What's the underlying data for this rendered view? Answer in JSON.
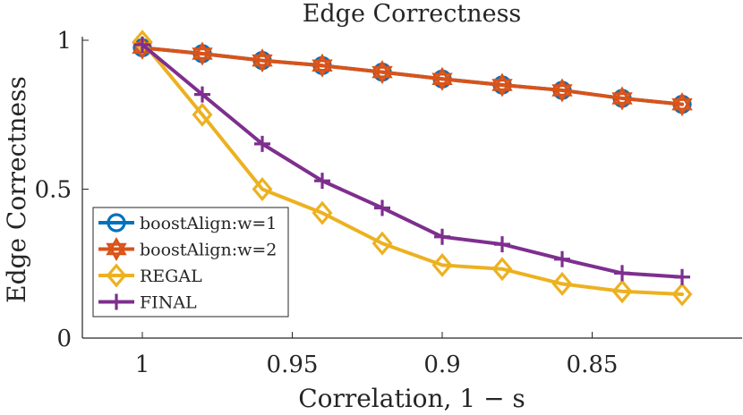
{
  "chart_data": {
    "type": "line",
    "title": "Edge Correctness",
    "xlabel": "Correlation, 1 − s",
    "ylabel": "Edge Correctness",
    "x": [
      1.0,
      0.98,
      0.96,
      0.94,
      0.92,
      0.9,
      0.88,
      0.86,
      0.84,
      0.82
    ],
    "xlim": [
      1.02,
      0.8
    ],
    "ylim": [
      0,
      1
    ],
    "xdir": "reverse",
    "xticks": [
      1,
      0.95,
      0.9,
      0.85
    ],
    "xtick_labels": [
      "1",
      "0.95",
      "0.9",
      "0.85"
    ],
    "yticks": [
      0,
      0.5,
      1
    ],
    "ytick_labels": [
      "0",
      "0.5",
      "1"
    ],
    "grid": false,
    "legend_position": "lower-left",
    "series": [
      {
        "name": "boostAlign:w=1",
        "marker": "circle",
        "color": "#0072BD",
        "values": [
          0.975,
          0.955,
          0.932,
          0.915,
          0.893,
          0.87,
          0.85,
          0.832,
          0.805,
          0.785
        ]
      },
      {
        "name": "boostAlign:w=2",
        "marker": "hexagram",
        "color": "#D95319",
        "values": [
          0.975,
          0.955,
          0.932,
          0.915,
          0.893,
          0.87,
          0.85,
          0.832,
          0.805,
          0.785
        ]
      },
      {
        "name": "REGAL",
        "marker": "diamond",
        "color": "#EDB120",
        "values": [
          0.995,
          0.75,
          0.5,
          0.42,
          0.318,
          0.245,
          0.232,
          0.182,
          0.157,
          0.147
        ]
      },
      {
        "name": "FINAL",
        "marker": "plus",
        "color": "#7E2F8E",
        "values": [
          0.985,
          0.818,
          0.652,
          0.528,
          0.437,
          0.34,
          0.315,
          0.265,
          0.218,
          0.205
        ]
      }
    ]
  }
}
